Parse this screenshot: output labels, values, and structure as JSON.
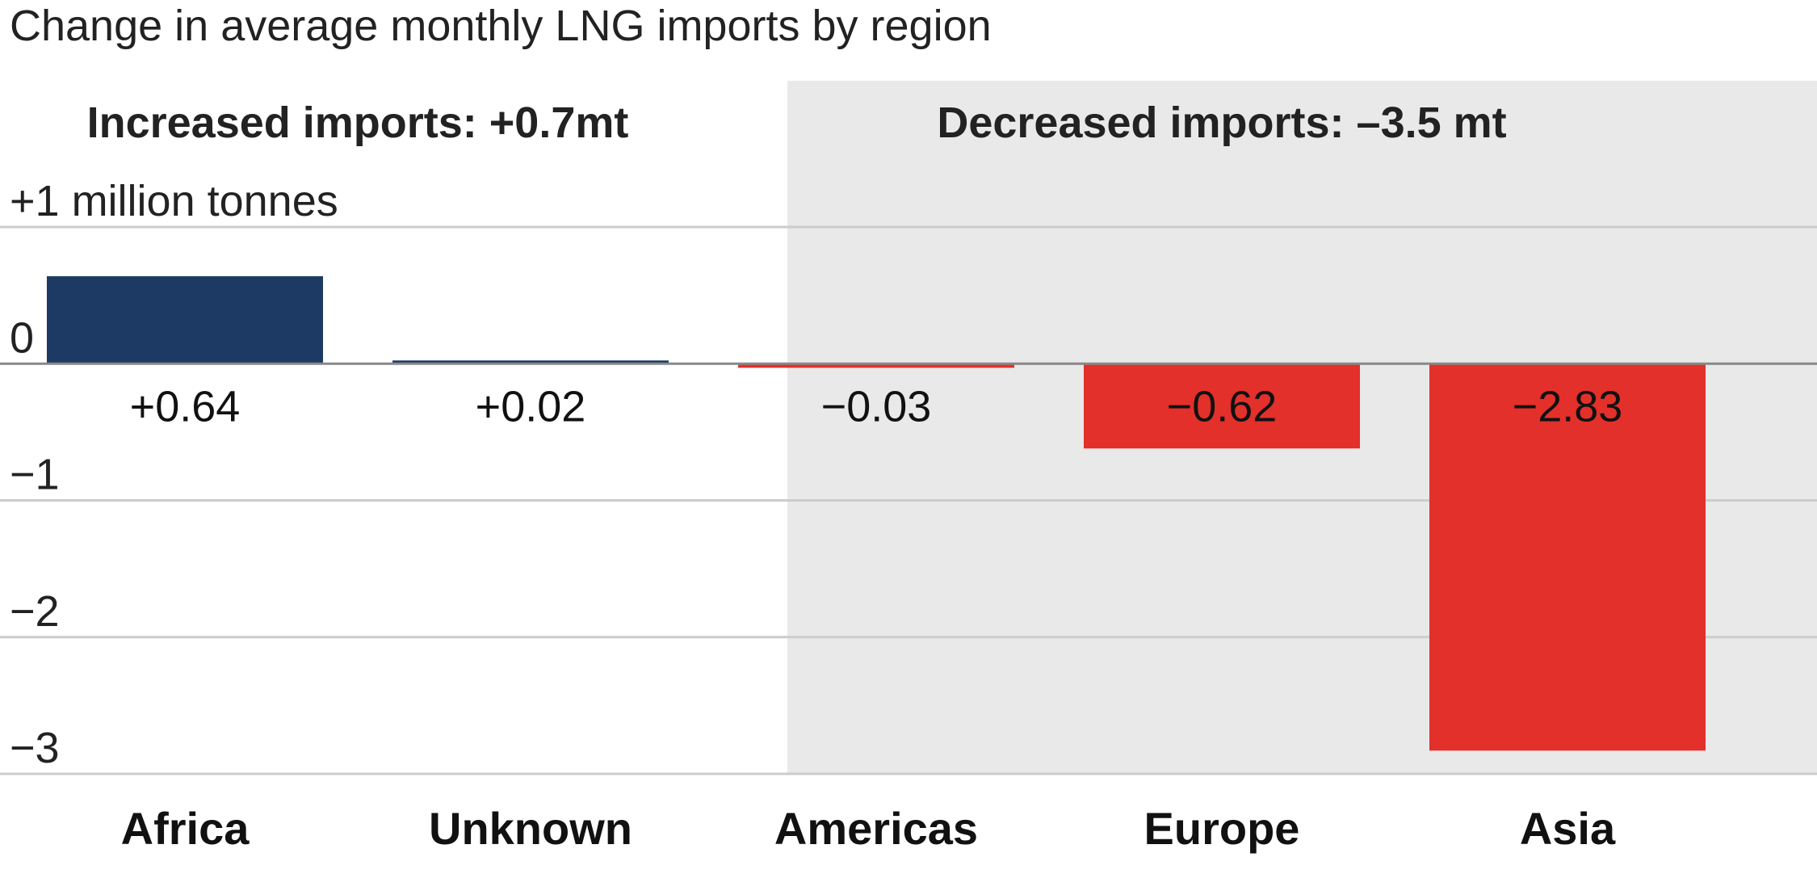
{
  "chart_data": {
    "type": "bar",
    "title": "Change in average monthly LNG imports by region",
    "ylabel": "",
    "xlabel": "",
    "ylim": [
      -3,
      1
    ],
    "yticks": [
      1,
      0,
      -1,
      -2,
      -3
    ],
    "ytick_labels": [
      "+1 million tonnes",
      "0",
      "−1",
      "−2",
      "−3"
    ],
    "grid": true,
    "categories": [
      "Africa",
      "Unknown",
      "Americas",
      "Europe",
      "Asia"
    ],
    "values": [
      0.64,
      0.02,
      -0.03,
      -0.62,
      -2.83
    ],
    "value_labels": [
      "+0.64",
      "+0.02",
      "−0.03",
      "−0.62",
      "−2.83"
    ],
    "bar_colors": [
      "#1c3a63",
      "#1c3a63",
      "#e3302a",
      "#e3302a",
      "#e3302a"
    ],
    "groups": [
      {
        "label": "Increased imports: +0.7mt",
        "categories": [
          "Africa",
          "Unknown"
        ],
        "background": "#ffffff"
      },
      {
        "label": "Decreased imports: –3.5 mt",
        "categories": [
          "Americas",
          "Europe",
          "Asia"
        ],
        "background": "#e9e9e9"
      }
    ]
  },
  "colors": {
    "increase": "#1c3a63",
    "decrease": "#e3302a",
    "gridline": "#cccccc",
    "zero_line": "#888888",
    "panel_shade": "#e9e9e9",
    "text": "#222222"
  }
}
